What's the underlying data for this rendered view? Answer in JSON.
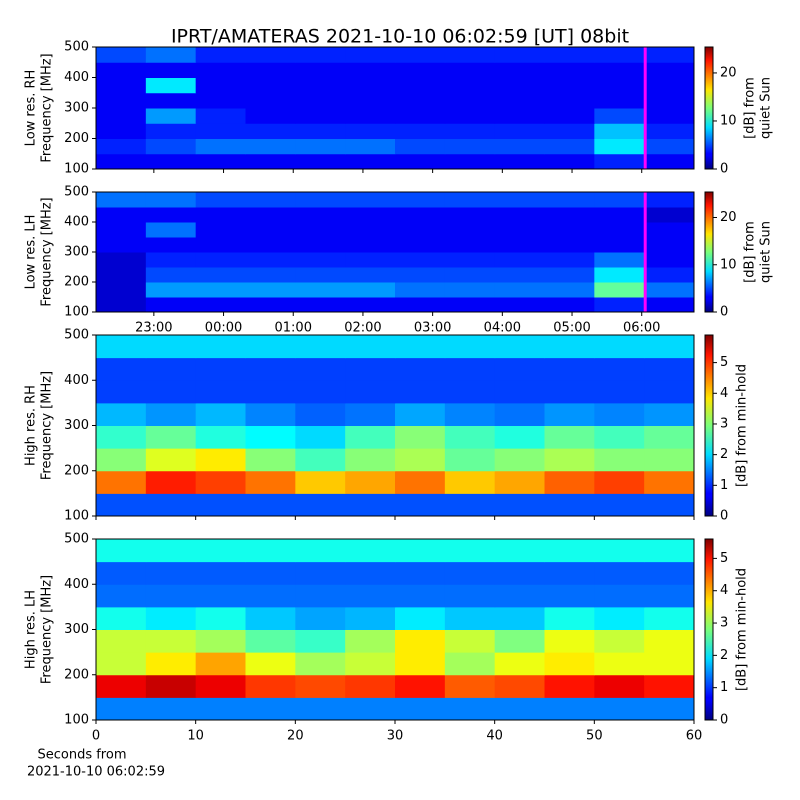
{
  "title": "IPRT/AMATERAS 2021-10-10 06:02:59 [UT]   08bit",
  "xlabel": [
    "Seconds from",
    "2021-10-10 06:02:59"
  ],
  "chart_data": [
    {
      "type": "heatmap",
      "ylabel": [
        "Low res. RH",
        "Frequency [MHz]"
      ],
      "clabel": [
        "[dB] from",
        "quiet Sun"
      ],
      "xlim": [
        22.17,
        30.75
      ],
      "xticks": [
        23,
        24,
        25,
        26,
        27,
        28,
        29,
        30
      ],
      "ylim": [
        100,
        500
      ],
      "yticks": [
        100,
        200,
        300,
        400,
        500
      ],
      "clim": [
        0,
        25.4
      ],
      "cticks": [
        0,
        10,
        20
      ],
      "marker_x": 30.05,
      "marker_color": "#ff00ff",
      "x_bins": [
        22.17,
        22.885,
        23.6,
        24.315,
        25.03,
        25.745,
        26.46,
        27.175,
        27.89,
        28.605,
        29.32,
        30.035,
        30.75
      ],
      "y_bins": [
        100,
        150,
        200,
        250,
        300,
        350,
        400,
        450,
        500
      ],
      "z": [
        [
          3,
          3,
          3,
          3,
          3,
          3,
          3,
          3,
          3,
          3,
          4,
          3
        ],
        [
          4,
          5,
          6,
          6,
          6,
          6,
          5,
          5,
          5,
          5,
          9,
          5
        ],
        [
          3,
          4,
          4,
          4,
          4,
          4,
          4,
          4,
          4,
          4,
          8,
          4
        ],
        [
          3,
          7,
          4,
          3,
          3,
          3,
          3,
          3,
          3,
          3,
          5,
          3
        ],
        [
          3,
          3,
          3,
          3,
          3,
          3,
          3,
          3,
          3,
          3,
          3,
          3
        ],
        [
          3,
          9,
          3,
          3,
          3,
          3,
          3,
          3,
          3,
          3,
          3,
          3
        ],
        [
          3,
          3,
          3,
          3,
          3,
          3,
          3,
          3,
          3,
          3,
          3,
          3
        ],
        [
          5,
          6,
          4,
          4,
          4,
          4,
          4,
          4,
          4,
          4,
          4,
          4
        ]
      ]
    },
    {
      "type": "heatmap",
      "ylabel": [
        "Low res. LH",
        "Frequency [MHz]"
      ],
      "clabel": [
        "[dB] from",
        "quiet Sun"
      ],
      "xlim": [
        22.17,
        30.75
      ],
      "xticks": [
        {
          "value": 23,
          "label": "23:00"
        },
        {
          "value": 24,
          "label": "00:00"
        },
        {
          "value": 25,
          "label": "01:00"
        },
        {
          "value": 26,
          "label": "02:00"
        },
        {
          "value": 27,
          "label": "03:00"
        },
        {
          "value": 28,
          "label": "04:00"
        },
        {
          "value": 29,
          "label": "05:00"
        },
        {
          "value": 30,
          "label": "06:00"
        }
      ],
      "ylim": [
        100,
        500
      ],
      "yticks": [
        100,
        200,
        300,
        400,
        500
      ],
      "clim": [
        0,
        25.4
      ],
      "cticks": [
        0,
        10,
        20
      ],
      "marker_x": 30.05,
      "marker_color": "#ff00ff",
      "x_bins": [
        22.17,
        22.885,
        23.6,
        24.315,
        25.03,
        25.745,
        26.46,
        27.175,
        27.89,
        28.605,
        29.32,
        30.035,
        30.75
      ],
      "y_bins": [
        100,
        150,
        200,
        250,
        300,
        350,
        400,
        450,
        500
      ],
      "z": [
        [
          2,
          3,
          3,
          3,
          3,
          3,
          3,
          3,
          3,
          3,
          4,
          3
        ],
        [
          2,
          7,
          7,
          7,
          7,
          7,
          6,
          6,
          6,
          6,
          12,
          6
        ],
        [
          2,
          5,
          5,
          5,
          5,
          5,
          5,
          5,
          5,
          5,
          9,
          4
        ],
        [
          2,
          4,
          4,
          4,
          4,
          4,
          4,
          4,
          4,
          4,
          6,
          3
        ],
        [
          3,
          3,
          3,
          3,
          3,
          3,
          3,
          3,
          3,
          3,
          3,
          3
        ],
        [
          3,
          6,
          3,
          3,
          3,
          3,
          3,
          3,
          3,
          3,
          3,
          3
        ],
        [
          3,
          3,
          3,
          3,
          3,
          3,
          3,
          3,
          3,
          3,
          3,
          2
        ],
        [
          6,
          6,
          5,
          5,
          5,
          5,
          5,
          5,
          5,
          5,
          5,
          4
        ]
      ]
    },
    {
      "type": "heatmap",
      "ylabel": [
        "High res. RH",
        "Frequency [MHz]"
      ],
      "clabel": [
        "[dB] from min-hold"
      ],
      "xlim": [
        0,
        60
      ],
      "xticks": [
        0,
        10,
        20,
        30,
        40,
        50,
        60
      ],
      "ylim": [
        100,
        500
      ],
      "yticks": [
        100,
        200,
        300,
        400,
        500
      ],
      "clim": [
        0,
        5.9
      ],
      "cticks": [
        0,
        1,
        2,
        3,
        4,
        5
      ],
      "x_bins": [
        0,
        5,
        10,
        15,
        20,
        25,
        30,
        35,
        40,
        45,
        50,
        55,
        60
      ],
      "y_bins": [
        100,
        150,
        200,
        250,
        300,
        350,
        400,
        450,
        500
      ],
      "z": [
        [
          1.2,
          1.2,
          1.2,
          1.2,
          1.2,
          1.2,
          1.2,
          1.2,
          1.2,
          1.2,
          1.2,
          1.2
        ],
        [
          4.5,
          5,
          4.8,
          4.5,
          4,
          4.2,
          4.5,
          4,
          4.2,
          4.6,
          4.8,
          4.5
        ],
        [
          3,
          3.5,
          3.8,
          3,
          2.6,
          3,
          3.2,
          2.8,
          3,
          3.2,
          3,
          3
        ],
        [
          2.5,
          2.8,
          2.4,
          2.2,
          2,
          2.6,
          3,
          2.6,
          2.4,
          2.8,
          2.6,
          2.8
        ],
        [
          1.8,
          1.6,
          1.8,
          1.5,
          1.3,
          1.4,
          1.7,
          1.5,
          1.4,
          1.6,
          1.5,
          1.6
        ],
        [
          1.1,
          1.1,
          1.1,
          1.1,
          1.1,
          1.1,
          1.1,
          1.1,
          1.1,
          1.1,
          1.1,
          1.1
        ],
        [
          1.1,
          1.1,
          1.1,
          1.1,
          1.1,
          1.1,
          1.1,
          1.1,
          1.1,
          1.1,
          1.1,
          1.1
        ],
        [
          2,
          2,
          2,
          2,
          2,
          2,
          2,
          2,
          2,
          2,
          2,
          2
        ]
      ]
    },
    {
      "type": "heatmap",
      "ylabel": [
        "High res. LH",
        "Frequency [MHz]"
      ],
      "clabel": [
        "[dB] from min-hold"
      ],
      "xlim": [
        0,
        60
      ],
      "xticks": [
        0,
        10,
        20,
        30,
        40,
        50,
        60
      ],
      "ylim": [
        100,
        500
      ],
      "yticks": [
        100,
        200,
        300,
        400,
        500
      ],
      "clim": [
        0,
        5.6
      ],
      "cticks": [
        0,
        1,
        2,
        3,
        4,
        5
      ],
      "x_bins": [
        0,
        5,
        10,
        15,
        20,
        25,
        30,
        35,
        40,
        45,
        50,
        55,
        60
      ],
      "y_bins": [
        100,
        150,
        200,
        250,
        300,
        350,
        400,
        450,
        500
      ],
      "z": [
        [
          1.4,
          1.4,
          1.4,
          1.4,
          1.4,
          1.4,
          1.4,
          1.4,
          1.4,
          1.4,
          1.4,
          1.4
        ],
        [
          5,
          5.2,
          5,
          4.6,
          4.5,
          4.6,
          4.8,
          4.4,
          4.5,
          4.8,
          5,
          4.8
        ],
        [
          3.2,
          3.6,
          4,
          3.4,
          3,
          3.2,
          3.6,
          3,
          3.4,
          3.6,
          3.4,
          3.4
        ],
        [
          3.2,
          3.2,
          3,
          2.6,
          2.4,
          3,
          3.6,
          3.2,
          2.8,
          3.4,
          3.2,
          3.4
        ],
        [
          2.2,
          2,
          2.2,
          1.8,
          1.6,
          1.7,
          2,
          1.8,
          1.8,
          2.2,
          2,
          2.2
        ],
        [
          1.3,
          1.3,
          1.3,
          1.3,
          1.3,
          1.3,
          1.3,
          1.3,
          1.3,
          1.3,
          1.3,
          1.3
        ],
        [
          1.2,
          1.2,
          1.2,
          1.2,
          1.2,
          1.2,
          1.2,
          1.2,
          1.2,
          1.2,
          1.2,
          1.2
        ],
        [
          2.2,
          2.2,
          2.2,
          2.2,
          2.2,
          2.2,
          2.2,
          2.2,
          2.2,
          2.2,
          2.2,
          2.2
        ]
      ]
    }
  ]
}
